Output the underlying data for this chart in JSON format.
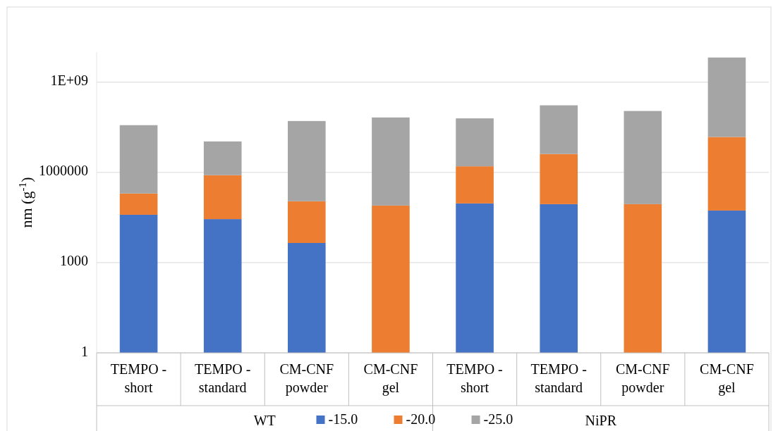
{
  "chart_data": {
    "type": "bar",
    "stacked": true,
    "log": "y",
    "ylabel": "nm (g$^{-1}$)",
    "categories": [
      "TEMPO - short",
      "TEMPO - standard",
      "CM-CNF powder",
      "CM-CNF gel",
      "TEMPO - short",
      "TEMPO - standard",
      "CM-CNF powder",
      "CM-CNF gel"
    ],
    "annotations": [
      "WT",
      "NiPR"
    ],
    "series": [
      {
        "name": "-15.0",
        "color": "#4472c4",
        "values": [
          39000,
          28000,
          4500,
          null,
          93000,
          88000,
          null,
          54000
        ]
      },
      {
        "name": "-20.0",
        "color": "#ed7d31",
        "values": [
          160000,
          780000,
          105000,
          79000,
          1500000,
          4000000,
          88000,
          15000000
        ]
      },
      {
        "name": "-25.0",
        "color": "#a5a5a5",
        "values": [
          37000000,
          9900000,
          51000000,
          67000000,
          61000000,
          166000000,
          110000000,
          6600000000
        ]
      }
    ],
    "ylim": [
      1,
      10000000000
    ],
    "yticks": [
      1,
      1000,
      1000000,
      {
        "value": 1000000000,
        "label": "1E+09"
      }
    ],
    "grid": "y",
    "legend": "bottom"
  }
}
